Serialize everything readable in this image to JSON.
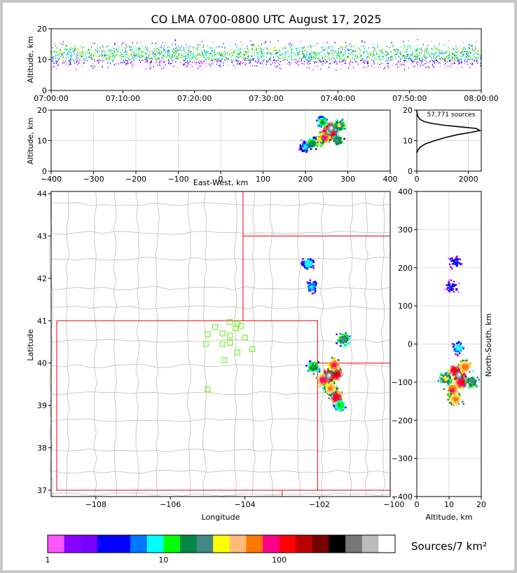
{
  "page": {
    "title": "CO LMA 0700-0800 UTC August 17, 2025"
  },
  "chart_data": [
    {
      "type": "scatter",
      "name": "time-altitude",
      "xlabel": "",
      "ylabel": "Altitude, km",
      "x_ticks": [
        "07:00:00",
        "07:10:00",
        "07:20:00",
        "07:30:00",
        "07:40:00",
        "07:50:00",
        "08:00:00"
      ],
      "xlim": [
        "07:00:00",
        "08:00:00"
      ],
      "ylim": [
        0,
        20
      ],
      "y_ticks": [
        0,
        10,
        20
      ]
    },
    {
      "type": "heatmap",
      "name": "east-west-altitude",
      "xlabel": "East-West, km",
      "ylabel": "Altitude, km",
      "xlim": [
        -400,
        400
      ],
      "x_ticks": [
        -400,
        -300,
        -200,
        -100,
        0,
        100,
        200,
        300,
        400
      ],
      "ylim": [
        0,
        20
      ],
      "y_ticks": [
        0,
        10,
        20
      ],
      "cells": [
        {
          "x": 255,
          "y": 13,
          "density": 250
        },
        {
          "x": 260,
          "y": 14,
          "density": 200
        },
        {
          "x": 265,
          "y": 12,
          "density": 120
        },
        {
          "x": 245,
          "y": 11,
          "density": 90
        },
        {
          "x": 230,
          "y": 10,
          "density": 40
        },
        {
          "x": 215,
          "y": 9,
          "density": 20
        },
        {
          "x": 200,
          "y": 8,
          "density": 8
        },
        {
          "x": 280,
          "y": 15,
          "density": 30
        },
        {
          "x": 275,
          "y": 10,
          "density": 25
        },
        {
          "x": 240,
          "y": 16,
          "density": 15
        }
      ]
    },
    {
      "type": "line",
      "name": "altitude-histogram",
      "annotation": "57,771 sources",
      "xlim": [
        0,
        2500
      ],
      "x_ticks": [
        0,
        2000
      ],
      "ylim": [
        0,
        20
      ],
      "y_ticks": [
        0,
        10,
        20
      ],
      "series": [
        {
          "x": [
            0,
            50,
            150,
            350,
            700,
            1100,
            1600,
            2100,
            2450,
            2300,
            1700,
            1100,
            600,
            300,
            120,
            40,
            10,
            0
          ],
          "y": [
            6,
            7,
            8,
            9,
            10,
            11,
            12,
            12.7,
            13.3,
            14,
            14.5,
            15,
            15.6,
            16.2,
            17,
            18,
            19,
            20
          ]
        }
      ]
    },
    {
      "type": "heatmap",
      "name": "plan-view-map",
      "xlabel": "Longitude",
      "ylabel": "Latitude",
      "xlim": [
        -109.2,
        -100.1
      ],
      "x_ticks": [
        -108,
        -106,
        -104,
        -102,
        -100
      ],
      "ylim": [
        36.85,
        44.05
      ],
      "y_ticks": [
        37,
        38,
        39,
        40,
        41,
        42,
        43,
        44
      ],
      "stations": [
        [
          -104.4,
          40.97
        ],
        [
          -104.2,
          40.93
        ],
        [
          -104.25,
          40.82
        ],
        [
          -104.1,
          40.88
        ],
        [
          -104.8,
          40.85
        ],
        [
          -104.6,
          40.7
        ],
        [
          -105.0,
          40.68
        ],
        [
          -104.4,
          40.65
        ],
        [
          -104.0,
          40.6
        ],
        [
          -104.6,
          40.45
        ],
        [
          -104.4,
          40.48
        ],
        [
          -105.05,
          40.45
        ],
        [
          -103.8,
          40.33
        ],
        [
          -104.2,
          40.25
        ],
        [
          -104.55,
          40.07
        ],
        [
          -105.0,
          39.38
        ]
      ],
      "cells": [
        {
          "x": -101.75,
          "y": 39.7,
          "density": 250
        },
        {
          "x": -101.55,
          "y": 39.75,
          "density": 150
        },
        {
          "x": -101.9,
          "y": 39.6,
          "density": 90
        },
        {
          "x": -101.6,
          "y": 39.95,
          "density": 80
        },
        {
          "x": -101.55,
          "y": 39.2,
          "density": 120
        },
        {
          "x": -101.7,
          "y": 39.4,
          "density": 60
        },
        {
          "x": -102.15,
          "y": 39.9,
          "density": 20
        },
        {
          "x": -101.35,
          "y": 40.55,
          "density": 25
        },
        {
          "x": -101.45,
          "y": 39.0,
          "density": 15
        },
        {
          "x": -102.2,
          "y": 41.8,
          "density": 8
        },
        {
          "x": -102.3,
          "y": 42.35,
          "density": 10
        }
      ]
    },
    {
      "type": "heatmap",
      "name": "altitude-north-south",
      "xlabel": "Altitude, km",
      "ylabel": "North-South, km",
      "xlim": [
        0,
        20
      ],
      "x_ticks": [
        0,
        10,
        20
      ],
      "ylim": [
        -400,
        400
      ],
      "y_ticks": [
        -400,
        -300,
        -200,
        -100,
        0,
        100,
        200,
        300,
        400
      ],
      "cells": [
        {
          "x": 13,
          "y": -82,
          "density": 250
        },
        {
          "x": 12,
          "y": -70,
          "density": 130
        },
        {
          "x": 14,
          "y": -100,
          "density": 120
        },
        {
          "x": 11,
          "y": -120,
          "density": 80
        },
        {
          "x": 15,
          "y": -60,
          "density": 70
        },
        {
          "x": 12,
          "y": -145,
          "density": 60
        },
        {
          "x": 9,
          "y": -90,
          "density": 30
        },
        {
          "x": 17,
          "y": -100,
          "density": 25
        },
        {
          "x": 13,
          "y": -10,
          "density": 10
        },
        {
          "x": 12,
          "y": 213,
          "density": 5
        },
        {
          "x": 11,
          "y": 150,
          "density": 5
        }
      ]
    }
  ],
  "colorbar": {
    "label": "Sources/7 km²",
    "tick_labels": [
      "1",
      "10",
      "100"
    ],
    "tick_values": [
      1,
      10,
      100
    ],
    "range": [
      1,
      1000
    ],
    "colors": [
      "#ff55ff",
      "#8800ff",
      "#7700ff",
      "#0000ff",
      "#0000ff",
      "#0077ff",
      "#00ffff",
      "#00ff00",
      "#008844",
      "#448888",
      "#ffff00",
      "#ffbb77",
      "#ff7700",
      "#ff0088",
      "#ff0000",
      "#bb0000",
      "#770000",
      "#000000",
      "#777777",
      "#bbbbbb",
      "#ffffff"
    ]
  }
}
